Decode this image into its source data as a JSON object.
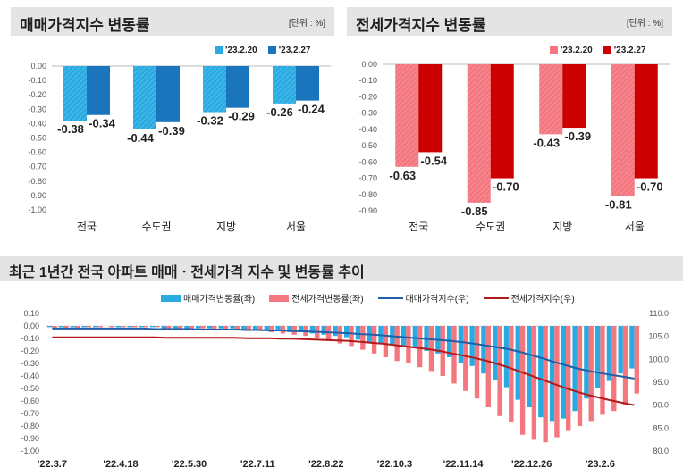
{
  "chart_data": [
    {
      "type": "bar",
      "title": "매매가격지수 변동률",
      "unit_label": "[단위 : %]",
      "categories": [
        "전국",
        "수도권",
        "지방",
        "서울"
      ],
      "series": [
        {
          "name": "'23.2.20",
          "values": [
            -0.38,
            -0.44,
            -0.32,
            -0.26
          ]
        },
        {
          "name": "'23.2.27",
          "values": [
            -0.34,
            -0.39,
            -0.29,
            -0.24
          ]
        }
      ],
      "ylim": [
        -1.0,
        0.0
      ],
      "yticks": [
        "0.00",
        "-0.10",
        "-0.20",
        "-0.30",
        "-0.40",
        "-0.50",
        "-0.60",
        "-0.70",
        "-0.80",
        "-0.90",
        "-1.00"
      ],
      "data_labels": [
        [
          "-0.38",
          "-0.44",
          "-0.32",
          "-0.26"
        ],
        [
          "-0.34",
          "-0.39",
          "-0.29",
          "-0.24"
        ]
      ],
      "legend": "top-right",
      "colors": [
        "#29abe2",
        "#1b75bc"
      ]
    },
    {
      "type": "bar",
      "title": "전세가격지수 변동률",
      "unit_label": "[단위 : %]",
      "categories": [
        "전국",
        "수도권",
        "지방",
        "서울"
      ],
      "series": [
        {
          "name": "'23.2.20",
          "values": [
            -0.63,
            -0.85,
            -0.43,
            -0.81
          ]
        },
        {
          "name": "'23.2.27",
          "values": [
            -0.54,
            -0.7,
            -0.39,
            -0.7
          ]
        }
      ],
      "ylim": [
        -0.9,
        0.0
      ],
      "yticks": [
        "0.00",
        "-0.10",
        "-0.20",
        "-0.30",
        "-0.40",
        "-0.50",
        "-0.60",
        "-0.70",
        "-0.80",
        "-0.90"
      ],
      "data_labels": [
        [
          "-0.63",
          "-0.85",
          "-0.43",
          "-0.81"
        ],
        [
          "-0.54",
          "-0.70",
          "-0.39",
          "-0.70"
        ]
      ],
      "legend": "top-right",
      "colors": [
        "#f4777f",
        "#cc0000"
      ]
    },
    {
      "type": "bar+line",
      "title": "최근 1년간 전국 아파트 매매ㆍ전세가격 지수 및 변동률 추이",
      "x_tick_labels": [
        "'22.3.7",
        "'22.4.18",
        "'22.5.30",
        "'22.7.11",
        "'22.8.22",
        "'22.10.3",
        "'22.11.14",
        "'22.12.26",
        "'23.2.6"
      ],
      "y_left_ticks": [
        "0.10",
        "0.00",
        "-0.10",
        "-0.20",
        "-0.30",
        "-0.40",
        "-0.50",
        "-0.60",
        "-0.70",
        "-0.80",
        "-0.90",
        "-1.00"
      ],
      "y_left_lim": [
        -1.0,
        0.1
      ],
      "y_right_ticks": [
        "110.0",
        "105.0",
        "100.0",
        "95.0",
        "90.0",
        "85.0",
        "80.0"
      ],
      "y_right_lim": [
        80.0,
        110.0
      ],
      "legend": "top",
      "series": [
        {
          "name": "매매가격변동률(좌)",
          "kind": "bar",
          "axis": "left",
          "color": "#29abe2",
          "values": [
            -0.01,
            -0.01,
            -0.01,
            -0.01,
            -0.01,
            0.0,
            -0.01,
            -0.01,
            -0.01,
            -0.01,
            -0.02,
            -0.02,
            -0.02,
            -0.02,
            -0.02,
            -0.02,
            -0.02,
            -0.03,
            -0.03,
            -0.03,
            -0.04,
            -0.05,
            -0.05,
            -0.06,
            -0.07,
            -0.08,
            -0.09,
            -0.11,
            -0.13,
            -0.14,
            -0.15,
            -0.16,
            -0.17,
            -0.2,
            -0.22,
            -0.25,
            -0.3,
            -0.32,
            -0.38,
            -0.43,
            -0.49,
            -0.59,
            -0.65,
            -0.73,
            -0.76,
            -0.74,
            -0.68,
            -0.58,
            -0.5,
            -0.44,
            -0.38,
            -0.34
          ]
        },
        {
          "name": "전세가격변동률(좌)",
          "kind": "bar",
          "axis": "left",
          "color": "#f4777f",
          "values": [
            -0.02,
            -0.02,
            -0.02,
            -0.01,
            -0.01,
            -0.01,
            -0.01,
            -0.01,
            -0.01,
            -0.01,
            -0.02,
            -0.02,
            -0.02,
            -0.02,
            -0.03,
            -0.03,
            -0.03,
            -0.04,
            -0.04,
            -0.05,
            -0.06,
            -0.07,
            -0.08,
            -0.1,
            -0.12,
            -0.14,
            -0.16,
            -0.19,
            -0.22,
            -0.25,
            -0.28,
            -0.3,
            -0.33,
            -0.36,
            -0.4,
            -0.46,
            -0.52,
            -0.58,
            -0.65,
            -0.72,
            -0.77,
            -0.87,
            -0.91,
            -0.93,
            -0.89,
            -0.84,
            -0.8,
            -0.76,
            -0.71,
            -0.68,
            -0.63,
            -0.54
          ]
        },
        {
          "name": "매매가격지수(우)",
          "kind": "line",
          "axis": "right",
          "color": "#1f5fa8",
          "values": [
            106.7,
            106.7,
            106.7,
            106.7,
            106.7,
            106.7,
            106.7,
            106.7,
            106.7,
            106.6,
            106.6,
            106.6,
            106.6,
            106.5,
            106.5,
            106.5,
            106.5,
            106.4,
            106.4,
            106.3,
            106.3,
            106.2,
            106.1,
            106.0,
            105.9,
            105.8,
            105.7,
            105.5,
            105.4,
            105.2,
            105.0,
            104.8,
            104.6,
            104.4,
            104.2,
            104.0,
            103.7,
            103.4,
            103.0,
            102.6,
            102.2,
            101.6,
            100.9,
            100.2,
            99.4,
            98.7,
            98.0,
            97.5,
            97.0,
            96.6,
            96.2,
            95.8
          ]
        },
        {
          "name": "전세가격지수(우)",
          "kind": "line",
          "axis": "right",
          "color": "#b31a1a",
          "values": [
            104.8,
            104.8,
            104.8,
            104.8,
            104.8,
            104.8,
            104.8,
            104.8,
            104.8,
            104.8,
            104.7,
            104.7,
            104.7,
            104.7,
            104.7,
            104.7,
            104.7,
            104.6,
            104.6,
            104.6,
            104.5,
            104.5,
            104.4,
            104.3,
            104.2,
            104.1,
            104.0,
            103.8,
            103.6,
            103.4,
            103.1,
            102.8,
            102.5,
            102.2,
            101.8,
            101.3,
            100.8,
            100.3,
            99.7,
            99.0,
            98.2,
            97.3,
            96.4,
            95.5,
            94.6,
            93.7,
            92.9,
            92.2,
            91.6,
            91.0,
            90.5,
            90.0
          ]
        }
      ]
    }
  ]
}
